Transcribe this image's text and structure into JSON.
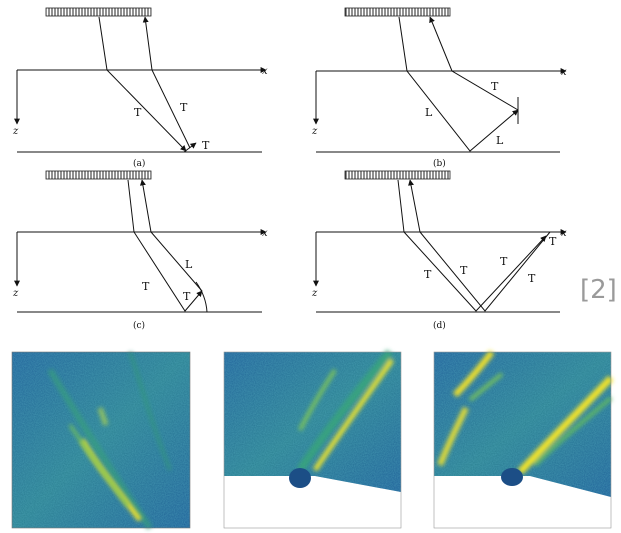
{
  "reference": "[2]",
  "axes": {
    "x": "x",
    "z": "z"
  },
  "panels": [
    {
      "id": "a",
      "caption": "(a)",
      "labels": [
        "T",
        "T",
        "T"
      ]
    },
    {
      "id": "b",
      "caption": "(b)",
      "labels": [
        "L",
        "T",
        "L"
      ]
    },
    {
      "id": "c",
      "caption": "(c)",
      "labels": [
        "T",
        "L",
        "T"
      ]
    },
    {
      "id": "d",
      "caption": "(d)",
      "labels": [
        "T",
        "T",
        "T",
        "T",
        "T"
      ]
    }
  ],
  "images": [
    "image-1",
    "image-2",
    "image-3"
  ],
  "colors": {
    "stroke": "#111111",
    "field_low": "#1e5aa0",
    "field_mid": "#2e8f86",
    "field_high": "#f0e020"
  }
}
